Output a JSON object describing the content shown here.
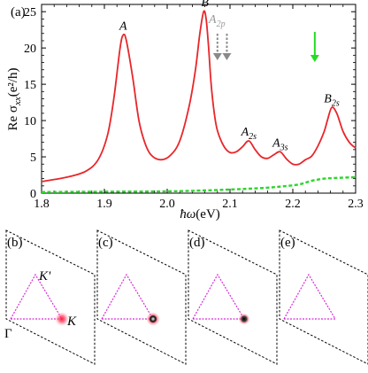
{
  "chart_data": [
    {
      "type": "line",
      "panel_label": "(a)",
      "xlabel_prefix": "ħω",
      "xlabel_unit": "(eV)",
      "ylabel_prefix": "Re σ",
      "ylabel_sub": "xx",
      "ylabel_unit": "(e²/h)",
      "xlim": [
        1.8,
        2.3
      ],
      "ylim": [
        0,
        26
      ],
      "x_ticks": [
        "1.8",
        "1.9",
        "2.0",
        "2.1",
        "2.2",
        "2.3"
      ],
      "y_ticks": [
        "0",
        "5",
        "10",
        "15",
        "20",
        "25"
      ],
      "grid": false,
      "series": [
        {
          "color": "#e8262a",
          "style": "solid",
          "x": [
            1.8,
            1.84,
            1.87,
            1.89,
            1.905,
            1.915,
            1.925,
            1.93,
            1.935,
            1.945,
            1.955,
            1.965,
            1.975,
            1.99,
            2.005,
            2.02,
            2.035,
            2.045,
            2.052,
            2.058,
            2.062,
            2.066,
            2.07,
            2.075,
            2.08,
            2.09,
            2.1,
            2.11,
            2.12,
            2.13,
            2.14,
            2.15,
            2.16,
            2.17,
            2.18,
            2.19,
            2.2,
            2.21,
            2.22,
            2.23,
            2.24,
            2.25,
            2.255,
            2.262,
            2.27,
            2.28,
            2.29,
            2.3
          ],
          "y": [
            1.6,
            2.2,
            3.0,
            4.6,
            8.0,
            13.0,
            20.0,
            21.8,
            21.0,
            16.0,
            10.0,
            6.8,
            5.2,
            4.6,
            5.2,
            7.2,
            12.0,
            17.0,
            22.0,
            25.0,
            24.0,
            20.0,
            15.0,
            11.0,
            8.6,
            6.5,
            5.6,
            5.7,
            6.4,
            7.2,
            6.0,
            5.0,
            4.8,
            5.3,
            5.7,
            4.7,
            4.0,
            4.0,
            4.6,
            5.1,
            6.5,
            8.5,
            10.0,
            11.8,
            11.0,
            8.5,
            7.0,
            6.2
          ]
        },
        {
          "color": "#2bd62b",
          "style": "dashed",
          "x": [
            1.8,
            1.9,
            2.0,
            2.05,
            2.1,
            2.15,
            2.18,
            2.21,
            2.23,
            2.25,
            2.27,
            2.3
          ],
          "y": [
            0.15,
            0.2,
            0.25,
            0.35,
            0.5,
            0.7,
            0.9,
            1.2,
            1.7,
            2.0,
            2.1,
            2.2
          ]
        }
      ],
      "peak_labels": [
        {
          "main": "A",
          "sub": "",
          "x": 1.93,
          "y": 21.8
        },
        {
          "main": "B",
          "sub": "",
          "x": 2.06,
          "y": 25.0
        },
        {
          "main": "A",
          "sub": "2s",
          "x": 2.13,
          "y": 7.2
        },
        {
          "main": "A",
          "sub": "3s",
          "x": 2.18,
          "y": 5.7
        },
        {
          "main": "B",
          "sub": "2s",
          "x": 2.262,
          "y": 11.8
        }
      ],
      "a2p_label": {
        "main": "A",
        "sub": "2p",
        "color": "#9a9a9a"
      },
      "arrows": [
        {
          "x": 2.08,
          "color": "#8a8a8a",
          "style": "dashed"
        },
        {
          "x": 2.095,
          "color": "#8a8a8a",
          "style": "dashed"
        },
        {
          "x": 2.235,
          "color": "#22dd22",
          "style": "solid"
        }
      ]
    },
    {
      "type": "diagram",
      "panels": [
        {
          "label": "(b)",
          "marker": "red",
          "show_labels": true,
          "gamma": "Γ",
          "k": "K",
          "kprime": "K'"
        },
        {
          "label": "(c)",
          "marker": "black-ring"
        },
        {
          "label": "(d)",
          "marker": "black-small"
        },
        {
          "label": "(e)",
          "marker": "none"
        }
      ],
      "colors": {
        "triangle": "#d82cd8",
        "marker_glow": "#ff5566"
      }
    }
  ]
}
